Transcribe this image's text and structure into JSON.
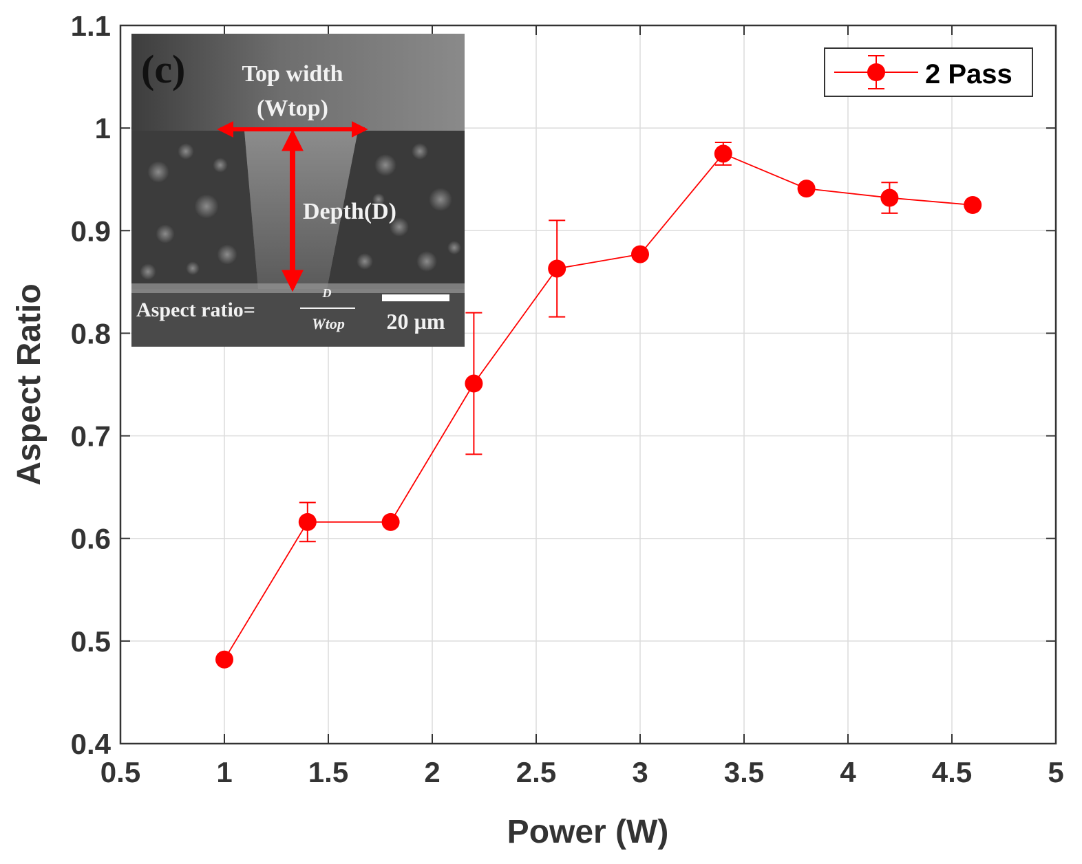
{
  "chart_data": {
    "type": "line",
    "title": "",
    "xlabel": "Power (W)",
    "ylabel": "Aspect Ratio",
    "xlim": [
      0.5,
      5
    ],
    "ylim": [
      0.4,
      1.1
    ],
    "xticks": [
      "0.5",
      "1",
      "1.5",
      "2",
      "2.5",
      "3",
      "3.5",
      "4",
      "4.5",
      "5"
    ],
    "yticks": [
      "0.4",
      "0.5",
      "0.6",
      "0.7",
      "0.8",
      "0.9",
      "1",
      "1.1"
    ],
    "grid": true,
    "legend_position": "top-right",
    "series": [
      {
        "name": "2 Pass",
        "color": "#ff0000",
        "x": [
          1.0,
          1.4,
          1.8,
          2.2,
          2.6,
          3.0,
          3.4,
          3.8,
          4.2,
          4.6
        ],
        "values": [
          0.482,
          0.616,
          0.616,
          0.751,
          0.863,
          0.877,
          0.975,
          0.941,
          0.932,
          0.925
        ],
        "error": [
          0.0,
          0.019,
          0.0,
          0.069,
          0.047,
          0.0,
          0.011,
          0.0,
          0.015,
          0.0
        ]
      }
    ]
  },
  "inset": {
    "panel_label": "(c)",
    "top_width_label": "Top width",
    "top_width_symbol": "(Wtop)",
    "depth_label": "Depth(D)",
    "aspect_ratio_label": "Aspect ratio=",
    "fraction_numerator": "D",
    "fraction_denominator": "Wtop",
    "scale_bar_label": "20 µm",
    "arrow_color": "#ff0000"
  }
}
